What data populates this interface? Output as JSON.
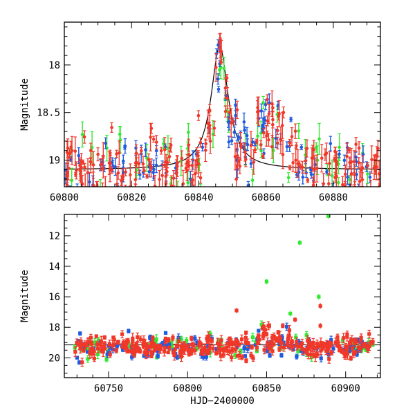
{
  "colors": {
    "red": "#f0382a",
    "green": "#33e833",
    "blue": "#1e5be0",
    "model": "#000000"
  },
  "chart_data": [
    {
      "type": "scatter",
      "panel": "top",
      "xlabel": "",
      "ylabel": "Magnitude",
      "xlim": [
        60800,
        60894
      ],
      "ylim": [
        19.28,
        17.55
      ],
      "y_inverted": true,
      "xticks": [
        60800,
        60820,
        60840,
        60860,
        60880
      ],
      "xtick_labels": [
        "60800",
        "60820",
        "60840",
        "60860",
        "60880"
      ],
      "yticks": [
        18,
        18.5,
        19
      ],
      "ytick_labels": [
        "18",
        "18.5",
        "19"
      ],
      "model_curve": {
        "peak_x": 60846.2,
        "base_mag": 19.1,
        "peak_mag": 17.8,
        "tau_days": 3.1,
        "color": "black"
      },
      "series": [
        {
          "color": "red",
          "n_points": 250,
          "err_range": [
            0.02,
            0.15
          ]
        },
        {
          "color": "green",
          "n_points": 62,
          "err_range": [
            0.03,
            0.17
          ]
        },
        {
          "color": "blue",
          "n_points": 120,
          "err_range": [
            0.02,
            0.1
          ]
        }
      ]
    },
    {
      "type": "scatter",
      "panel": "bottom",
      "xlabel": "HJD−2400000",
      "ylabel": "Magnitude",
      "xlim": [
        60722,
        60922
      ],
      "ylim": [
        21.3,
        10.6
      ],
      "y_inverted": true,
      "xticks": [
        60750,
        60800,
        60850,
        60900
      ],
      "xtick_labels": [
        "60750",
        "60800",
        "60850",
        "60900"
      ],
      "yticks": [
        12,
        14,
        16,
        18,
        20
      ],
      "ytick_labels": [
        "12",
        "14",
        "16",
        "18",
        "20"
      ],
      "baseline_mag": 19.15,
      "series": [
        {
          "color": "red",
          "n_points": 330,
          "err_range": [
            0.08,
            0.35
          ]
        },
        {
          "color": "green",
          "n_points": 70,
          "err_range": [
            0.1,
            0.3
          ]
        },
        {
          "color": "blue",
          "n_points": 130,
          "err_range": [
            0.05,
            0.25
          ]
        }
      ],
      "outliers": [
        {
          "x": 60889,
          "y": 10.7,
          "color": "green"
        },
        {
          "x": 60871,
          "y": 12.45,
          "color": "green"
        },
        {
          "x": 60850,
          "y": 15.0,
          "color": "green"
        },
        {
          "x": 60883,
          "y": 16.0,
          "color": "green"
        },
        {
          "x": 60865,
          "y": 17.1,
          "color": "green"
        },
        {
          "x": 60831,
          "y": 16.9,
          "color": "red"
        },
        {
          "x": 60884,
          "y": 16.6,
          "color": "red"
        },
        {
          "x": 60884,
          "y": 17.9,
          "color": "red"
        },
        {
          "x": 60868,
          "y": 17.5,
          "color": "red"
        }
      ]
    }
  ]
}
